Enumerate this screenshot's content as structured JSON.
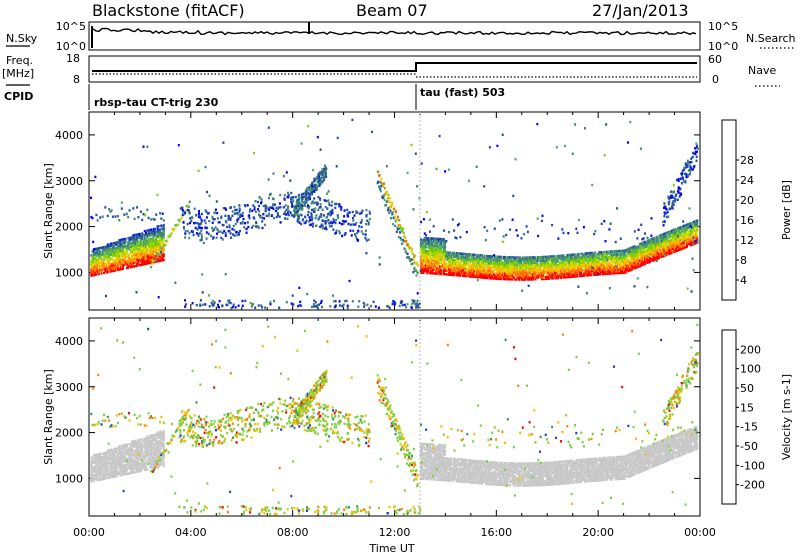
{
  "header": {
    "station": "Blackstone (fitACF)",
    "beam": "Beam 07",
    "date": "27/Jan/2013"
  },
  "top_panels": {
    "nsky_label": "N.Sky",
    "nsky_ticks": [
      "10^5",
      "10^0"
    ],
    "nsearch_label": "N.Search",
    "nsearch_ticks": [
      "10^5",
      "10^0"
    ],
    "freq_label": "Freq.",
    "freq_unit": "[MHz]",
    "freq_ticks": [
      "18",
      "8"
    ],
    "nave_label": "Nave",
    "nave_ticks": [
      "60",
      "0"
    ],
    "cpid_label": "CPID",
    "cpid_segments": [
      {
        "name": "rbsp-tau CT-trig 230",
        "start_hour": 0
      },
      {
        "name": "tau (fast) 503",
        "start_hour": 13
      }
    ]
  },
  "xaxis": {
    "label": "Time UT",
    "ticks": [
      "00:00",
      "04:00",
      "08:00",
      "12:00",
      "16:00",
      "20:00",
      "00:00"
    ]
  },
  "chart_data": [
    {
      "type": "heatmap",
      "name": "power",
      "ylabel": "Slant Range [km]",
      "y_ticks": [
        1000,
        2000,
        3000,
        4000
      ],
      "ylim": [
        180,
        4500
      ],
      "xlim_hours": [
        0,
        24
      ],
      "colorbar_label": "Power [dB]",
      "colorbar_ticks": [
        4,
        8,
        12,
        16,
        20,
        24,
        28
      ],
      "colorbar_colors": [
        "#0000ff",
        "#1f49a8",
        "#3f7f7f",
        "#4fa85f",
        "#7fd000",
        "#d7d700",
        "#ffb000",
        "#ff6a00",
        "#ff0000"
      ],
      "features": [
        {
          "desc": "strong near-range scatter",
          "hours": [
            0,
            2.8
          ],
          "range_km": [
            900,
            1500
          ]
        },
        {
          "desc": "strong near-range scatter",
          "hours": [
            13,
            23.9
          ],
          "range_km": [
            800,
            1800
          ]
        }
      ]
    },
    {
      "type": "heatmap",
      "name": "velocity",
      "ylabel": "Slant Range [km]",
      "y_ticks": [
        1000,
        2000,
        3000,
        4000
      ],
      "ylim": [
        180,
        4500
      ],
      "xlim_hours": [
        0,
        24
      ],
      "colorbar_label": "Velocity [m s-1]",
      "colorbar_ticks": [
        200,
        100,
        50,
        15,
        -15,
        -50,
        -100,
        -200
      ],
      "colorbar_colors": [
        "#1f3fbf",
        "#1f7f9f",
        "#3f8f5f",
        "#7fcf3f",
        "#c8c8c8",
        "#f0c000",
        "#ff8000",
        "#ff4000",
        "#ff0000"
      ]
    }
  ]
}
